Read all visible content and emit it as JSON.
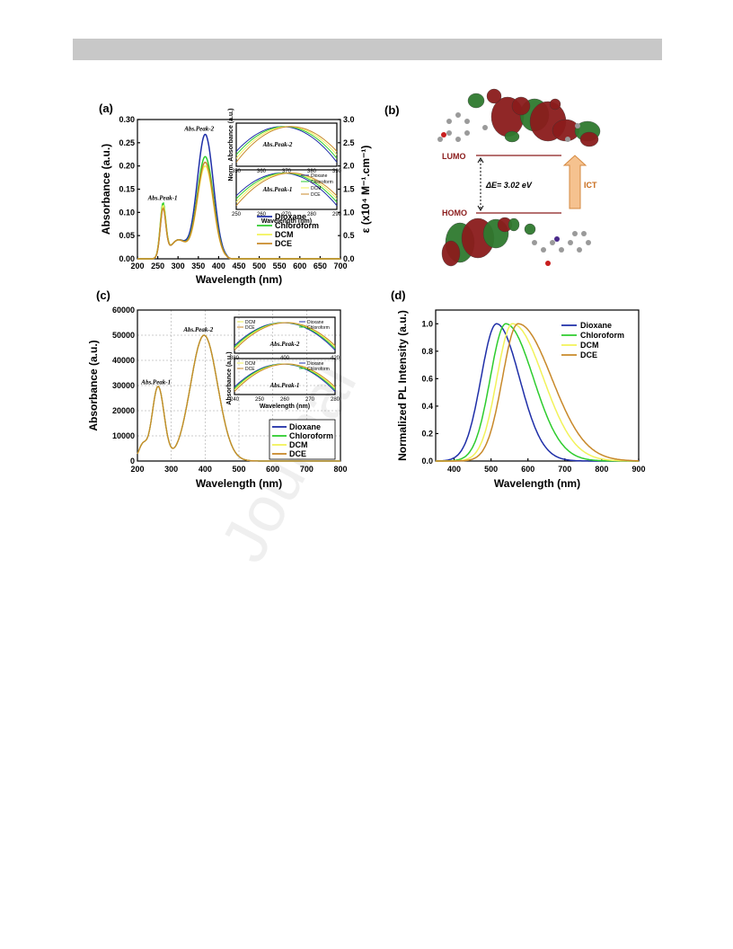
{
  "page": {
    "watermark": "Journal"
  },
  "panel_labels": {
    "a": "(a)",
    "b": "(b)",
    "c": "(c)",
    "d": "(d)"
  },
  "legend_names": [
    "Dioxane",
    "Chloroform",
    "DCM",
    "DCE"
  ],
  "series_colors": {
    "Dioxane": "#1f2fa8",
    "Chloroform": "#2ecc2e",
    "DCM": "#f2f25a",
    "DCE": "#c8892a"
  },
  "diagram_b": {
    "lumo_label": "LUMO",
    "homo_label": "HOMO",
    "gap_label": "ΔE= 3.02 eV",
    "ict_label": "ICT"
  },
  "chart_data": [
    {
      "id": "a",
      "type": "line",
      "xlabel": "Wavelength (nm)",
      "ylabel": "Absorbance (a.u.)",
      "y2label": "ε (x10⁴ M⁻¹.cm⁻¹)",
      "xlim": [
        200,
        700
      ],
      "ylim": [
        0,
        0.3
      ],
      "y2lim": [
        0,
        3.0
      ],
      "xticks": [
        200,
        250,
        300,
        350,
        400,
        450,
        500,
        550,
        600,
        650,
        700
      ],
      "yticks": [
        "0.00",
        "0.05",
        "0.10",
        "0.15",
        "0.20",
        "0.25",
        "0.30"
      ],
      "y2ticks": [
        "0.0",
        "0.5",
        "1.0",
        "1.5",
        "2.0",
        "2.5",
        "3.0"
      ],
      "annotations": [
        "Abs.Peak-1",
        "Abs.Peak-2"
      ],
      "series": [
        {
          "name": "Dioxane",
          "peak1": 0.105,
          "peak2": 0.268
        },
        {
          "name": "Chloroform",
          "peak1": 0.113,
          "peak2": 0.22
        },
        {
          "name": "DCM",
          "peak1": 0.108,
          "peak2": 0.2
        },
        {
          "name": "DCE",
          "peak1": 0.102,
          "peak2": 0.208
        }
      ],
      "insets": [
        {
          "ylabel": "Norm. Absorbance (a.u.)",
          "annotation": "Abs.Peak-2",
          "xticks": [
            350,
            360,
            370,
            380,
            390
          ]
        },
        {
          "xlabel": "Wavelength (nm)",
          "annotation": "Abs.Peak-1",
          "xticks": [
            250,
            260,
            270,
            280,
            290
          ]
        }
      ]
    },
    {
      "id": "c",
      "type": "line",
      "xlabel": "Wavelength (nm)",
      "ylabel": "Absorbance (a.u.)",
      "xlim": [
        200,
        800
      ],
      "ylim": [
        0,
        60000
      ],
      "xticks": [
        200,
        300,
        400,
        500,
        600,
        700,
        800
      ],
      "yticks": [
        0,
        10000,
        20000,
        30000,
        40000,
        50000,
        60000
      ],
      "annotations": [
        "Abs.Peak-1",
        "Abs.Peak-2"
      ],
      "series": [
        {
          "name": "Dioxane",
          "peak1": 29500,
          "peak2": 50000
        },
        {
          "name": "Chloroform",
          "peak1": 29500,
          "peak2": 50000
        },
        {
          "name": "DCM",
          "peak1": 29500,
          "peak2": 50000
        },
        {
          "name": "DCE",
          "peak1": 29500,
          "peak2": 50000
        }
      ],
      "insets": [
        {
          "annotation": "Abs.Peak-2",
          "xticks": [
            380,
            400,
            420
          ]
        },
        {
          "ylabel": "Absorbance (a.u.)",
          "xlabel": "Wavelength (nm)",
          "annotation": "Abs.Peak-1",
          "xticks": [
            240,
            250,
            260,
            270,
            280
          ]
        }
      ]
    },
    {
      "id": "d",
      "type": "line",
      "xlabel": "Wavelength (nm)",
      "ylabel": "Normalized PL Intensity (a.u.)",
      "xlim": [
        350,
        900
      ],
      "ylim": [
        0,
        1.1
      ],
      "xticks": [
        400,
        500,
        600,
        700,
        800,
        900
      ],
      "yticks": [
        "0.0",
        "0.2",
        "0.4",
        "0.6",
        "0.8",
        "1.0"
      ],
      "series": [
        {
          "name": "Dioxane",
          "peak": 515
        },
        {
          "name": "Chloroform",
          "peak": 540
        },
        {
          "name": "DCM",
          "peak": 558
        },
        {
          "name": "DCE",
          "peak": 573
        }
      ]
    }
  ]
}
